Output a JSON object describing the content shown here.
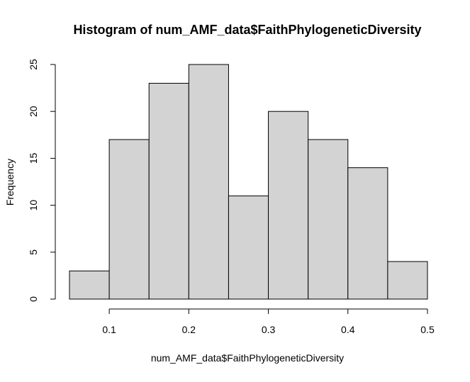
{
  "colors": {
    "bar_fill": "#d3d3d3",
    "bar_stroke": "#000000",
    "axis": "#000000",
    "background": "#ffffff"
  },
  "chart_data": {
    "type": "bar",
    "title": "Histogram of num_AMF_data$FaithPhylogeneticDiversity",
    "xlabel": "num_AMF_data$FaithPhylogeneticDiversity",
    "ylabel": "Frequency",
    "bins": [
      {
        "start": 0.05,
        "end": 0.1,
        "count": 3
      },
      {
        "start": 0.1,
        "end": 0.15,
        "count": 17
      },
      {
        "start": 0.15,
        "end": 0.2,
        "count": 23
      },
      {
        "start": 0.2,
        "end": 0.25,
        "count": 25
      },
      {
        "start": 0.25,
        "end": 0.3,
        "count": 11
      },
      {
        "start": 0.3,
        "end": 0.35,
        "count": 20
      },
      {
        "start": 0.35,
        "end": 0.4,
        "count": 17
      },
      {
        "start": 0.4,
        "end": 0.45,
        "count": 14
      },
      {
        "start": 0.45,
        "end": 0.5,
        "count": 4
      }
    ],
    "xlim": [
      0.05,
      0.5
    ],
    "ylim": [
      0,
      25
    ],
    "xticks": [
      0.1,
      0.2,
      0.3,
      0.4,
      0.5
    ],
    "xtick_labels": [
      "0.1",
      "0.2",
      "0.3",
      "0.4",
      "0.5"
    ],
    "yticks": [
      0,
      5,
      10,
      15,
      20,
      25
    ],
    "ytick_labels": [
      "0",
      "5",
      "10",
      "15",
      "20",
      "25"
    ],
    "grid": false,
    "legend": "none"
  }
}
